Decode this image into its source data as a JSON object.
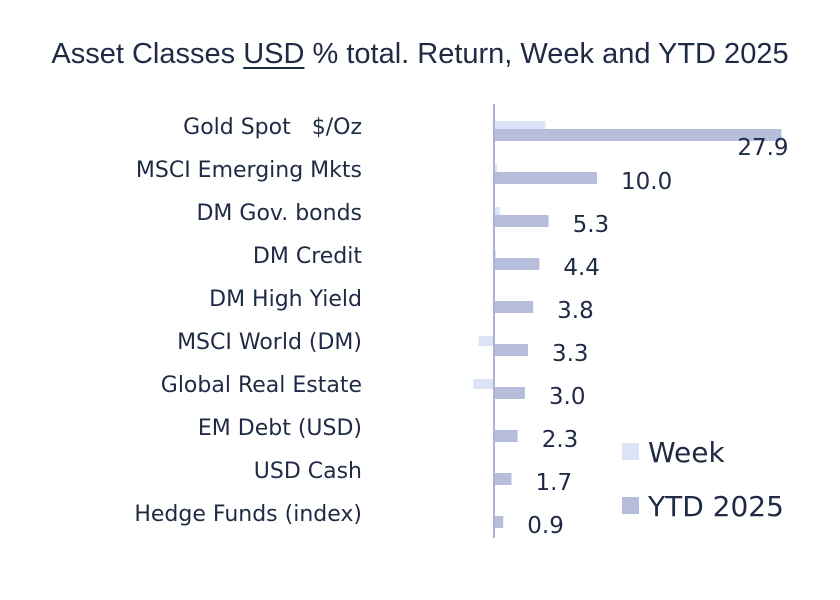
{
  "title": {
    "prefix": "Asset Classes ",
    "underlined": "USD",
    "suffix": " % total. Return, Week and YTD 2025"
  },
  "chart_data": {
    "type": "bar",
    "orientation": "horizontal",
    "categories": [
      "Gold Spot   $/Oz",
      "MSCI Emerging Mkts",
      "DM Gov. bonds",
      "DM Credit",
      "DM High Yield",
      "MSCI World (DM)",
      "Global Real Estate",
      "EM Debt (USD)",
      "USD Cash",
      "Hedge Funds (index)"
    ],
    "series": [
      {
        "name": "Week",
        "values": [
          5.0,
          0.3,
          0.6,
          0.2,
          0.1,
          -1.5,
          -2.0,
          0.1,
          0.1,
          0.1
        ]
      },
      {
        "name": "YTD 2025",
        "values": [
          27.9,
          10.0,
          5.3,
          4.4,
          3.8,
          3.3,
          3.0,
          2.3,
          1.7,
          0.9
        ]
      }
    ],
    "data_labels": [
      "27.9",
      "10.0",
      "5.3",
      "4.4",
      "3.8",
      "3.3",
      "3.0",
      "2.3",
      "1.7",
      "0.9"
    ],
    "colors": {
      "Week": "#dce3f7",
      "YTD 2025": "#b7bedc",
      "axis": "#aab3d6"
    },
    "legend_position": "bottom-right",
    "grid": false
  }
}
